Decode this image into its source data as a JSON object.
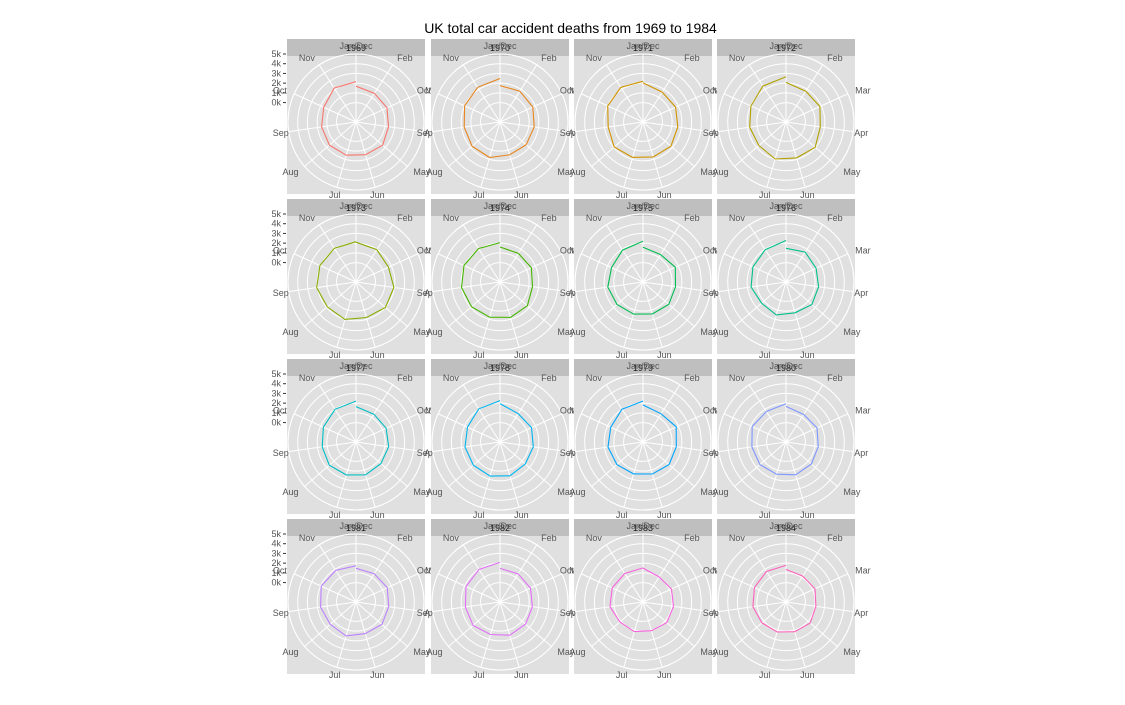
{
  "chart_data": {
    "type": "polar-line-facets",
    "title": "UK total car accident deaths from 1969 to 1984",
    "angular_labels": [
      "Jan/Dec",
      "Feb",
      "Mar",
      "Apr",
      "May",
      "Jun",
      "Jul",
      "Aug",
      "Sep",
      "Oct",
      "Nov"
    ],
    "radial_ticks": [
      "0k",
      "1k",
      "2k",
      "3k",
      "4k",
      "5k"
    ],
    "radial_range": [
      -2000,
      5000
    ],
    "grid": true,
    "months": [
      "Jan",
      "Feb",
      "Mar",
      "Apr",
      "May",
      "Jun",
      "Jul",
      "Aug",
      "Sep",
      "Oct",
      "Nov",
      "Dec"
    ],
    "panels": [
      {
        "year": "1969",
        "color": "#F8766D",
        "values": [
          1687,
          1508,
          1507,
          1385,
          1632,
          1511,
          1559,
          1630,
          1579,
          1653,
          2152,
          2148
        ]
      },
      {
        "year": "1970",
        "color": "#E7851E",
        "values": [
          1752,
          1765,
          1717,
          1558,
          1575,
          1520,
          1805,
          1800,
          1719,
          2008,
          2242,
          2478
        ]
      },
      {
        "year": "1971",
        "color": "#D09400",
        "values": [
          2030,
          1655,
          1693,
          1623,
          1805,
          1746,
          1795,
          1926,
          1619,
          1992,
          2233,
          2192
        ]
      },
      {
        "year": "1972",
        "color": "#B2A100",
        "values": [
          2080,
          1768,
          1835,
          1569,
          1976,
          1853,
          1965,
          1689,
          1778,
          1976,
          2397,
          2654
        ]
      },
      {
        "year": "1973",
        "color": "#89AC00",
        "values": [
          2097,
          1963,
          1677,
          1941,
          2003,
          1813,
          2012,
          1912,
          2084,
          2080,
          2118,
          2150
        ]
      },
      {
        "year": "1974",
        "color": "#45B500",
        "values": [
          1608,
          1503,
          1548,
          1382,
          1731,
          1798,
          1779,
          1887,
          2004,
          2077,
          2092,
          2051
        ]
      },
      {
        "year": "1975",
        "color": "#00BC51",
        "values": [
          1577,
          1356,
          1652,
          1382,
          1519,
          1421,
          1442,
          1543,
          1656,
          1561,
          1905,
          2199
        ]
      },
      {
        "year": "1976",
        "color": "#00C08B",
        "values": [
          1473,
          1655,
          1407,
          1395,
          1530,
          1309,
          1526,
          1327,
          1627,
          1748,
          1958,
          2274
        ]
      },
      {
        "year": "1977",
        "color": "#00BFC4",
        "values": [
          1648,
          1401,
          1411,
          1403,
          1394,
          1520,
          1528,
          1643,
          1515,
          1685,
          2000,
          2215
        ]
      },
      {
        "year": "1978",
        "color": "#00B4EF",
        "values": [
          1956,
          1462,
          1563,
          1459,
          1446,
          1622,
          1657,
          1638,
          1643,
          1683,
          2050,
          2262
        ]
      },
      {
        "year": "1979",
        "color": "#00A5FF",
        "values": [
          1813,
          1445,
          1762,
          1461,
          1556,
          1431,
          1427,
          1554,
          1645,
          1653,
          2016,
          2207
        ]
      },
      {
        "year": "1980",
        "color": "#7F96FF",
        "values": [
          1665,
          1361,
          1506,
          1360,
          1453,
          1522,
          1460,
          1552,
          1548,
          1827,
          1737,
          1941
        ]
      },
      {
        "year": "1981",
        "color": "#BC81FF",
        "values": [
          1474,
          1458,
          1542,
          1404,
          1522,
          1385,
          1641,
          1510,
          1681,
          1938,
          1868,
          1726
        ]
      },
      {
        "year": "1982",
        "color": "#E26EF7",
        "values": [
          1456,
          1445,
          1456,
          1365,
          1487,
          1558,
          1488,
          1684,
          1594,
          1850,
          1998,
          2079
        ]
      },
      {
        "year": "1983",
        "color": "#F863DF",
        "values": [
          1494,
          1057,
          1218,
          1168,
          1236,
          1076,
          1174,
          1139,
          1427,
          1487,
          1483,
          1513
        ]
      },
      {
        "year": "1984",
        "color": "#FF62BC",
        "values": [
          1357,
          1165,
          1282,
          1110,
          1297,
          1185,
          1222,
          1284,
          1444,
          1575,
          1737,
          1763
        ]
      }
    ]
  }
}
